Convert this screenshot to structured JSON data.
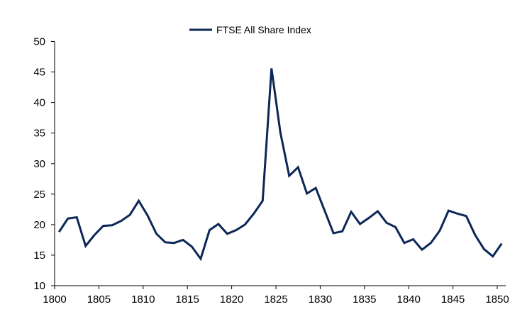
{
  "chart_data": {
    "type": "line",
    "title": "",
    "xlabel": "",
    "ylabel": "",
    "ylim": [
      10,
      50
    ],
    "yticks": [
      "10",
      "15",
      "20",
      "25",
      "30",
      "35",
      "40",
      "45",
      "50"
    ],
    "xtick_labels": [
      "1800",
      "1805",
      "1810",
      "1815",
      "1820",
      "1825",
      "1830",
      "1835",
      "1840",
      "1845",
      "1850"
    ],
    "x": [
      1800,
      1801,
      1802,
      1803,
      1804,
      1805,
      1806,
      1807,
      1808,
      1809,
      1810,
      1811,
      1812,
      1813,
      1814,
      1815,
      1816,
      1817,
      1818,
      1819,
      1820,
      1821,
      1822,
      1823,
      1824,
      1825,
      1826,
      1827,
      1828,
      1829,
      1830,
      1831,
      1832,
      1833,
      1834,
      1835,
      1836,
      1837,
      1838,
      1839,
      1840,
      1841,
      1842,
      1843,
      1844,
      1845,
      1846,
      1847,
      1848,
      1849,
      1850
    ],
    "series": [
      {
        "name": "FTSE All Share Index",
        "color": "#0c2757",
        "values": [
          18.8,
          21.0,
          21.2,
          16.5,
          18.3,
          19.8,
          19.9,
          20.6,
          21.6,
          23.9,
          21.5,
          18.5,
          17.1,
          17.0,
          17.5,
          16.4,
          14.4,
          19.1,
          20.1,
          18.5,
          19.1,
          20.0,
          21.8,
          23.9,
          45.6,
          35.1,
          28.0,
          29.4,
          25.1,
          26.0,
          22.3,
          18.6,
          18.9,
          22.1,
          20.1,
          21.1,
          22.2,
          20.3,
          19.6,
          17.0,
          17.6,
          15.9,
          17.0,
          19.0,
          22.3,
          21.8,
          21.4,
          18.3,
          16.0,
          14.8,
          16.9
        ]
      }
    ],
    "legend_position": "top-center",
    "grid": false
  }
}
